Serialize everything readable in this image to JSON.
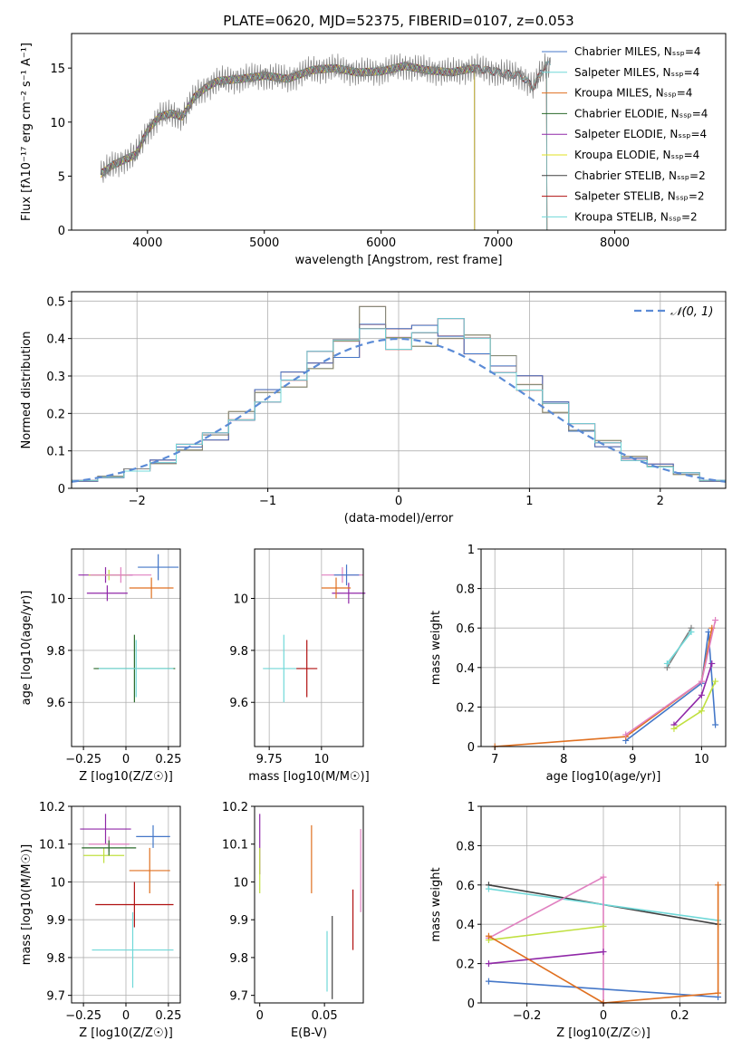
{
  "figure_title": "PLATE=0620, MJD=52375, FIBERID=0107, z=0.053",
  "colors": [
    "#4477c8",
    "#e07020",
    "#808080",
    "#9028a8",
    "#c0e040",
    "#e080c0",
    "#2a6a2a",
    "#b01010",
    "#70d8d8"
  ],
  "chart_data": [
    {
      "id": "spectrum",
      "type": "line",
      "xlabel": "wavelength [Angstrom, rest frame]",
      "ylabel": "Flux [fλ10⁻¹⁷ erg cm⁻² s⁻¹ A⁻¹]",
      "xlim": [
        3350,
        8950
      ],
      "ylim": [
        0,
        18.2
      ],
      "xticks": [
        4000,
        5000,
        6000,
        7000,
        8000
      ],
      "yticks": [
        0,
        5,
        10,
        15
      ],
      "grid": false,
      "legend": "upper-right",
      "data_x": [
        3600,
        3700,
        3800,
        3900,
        4000,
        4100,
        4200,
        4300,
        4400,
        4500,
        4600,
        4800,
        5000,
        5200,
        5400,
        5600,
        5800,
        6000,
        6200,
        6400,
        6600,
        6800,
        7000,
        7200,
        7300,
        7400,
        7450
      ],
      "data_y": [
        5.2,
        6.0,
        6.5,
        7.0,
        9.2,
        10.5,
        10.8,
        10.5,
        12.3,
        13.2,
        13.8,
        14.0,
        14.3,
        14.0,
        14.8,
        15.0,
        14.6,
        14.7,
        15.2,
        14.8,
        14.6,
        15.0,
        14.6,
        14.3,
        13.2,
        15.2,
        15.3
      ],
      "models": [
        {
          "name": "Chabrier MILES, N_SSP=4",
          "color": "#4477c8",
          "x_end": 8950
        },
        {
          "name": "Salpeter MILES, N_SSP=4",
          "color": "#70d8d8",
          "x_end": 8950
        },
        {
          "name": "Kroupa MILES, N_SSP=4",
          "color": "#e07020",
          "x_end": 7420
        },
        {
          "name": "Chabrier ELODIE, N_SSP=4",
          "color": "#2a6a2a",
          "x_end": 6800
        },
        {
          "name": "Salpeter ELODIE, N_SSP=4",
          "color": "#9028a8",
          "x_end": 6800
        },
        {
          "name": "Kroupa ELODIE, N_SSP=4",
          "color": "#e0e020",
          "x_end": 6800
        },
        {
          "name": "Chabrier STELIB, N_SSP=2",
          "color": "#404040",
          "x_end": 7420
        },
        {
          "name": "Salpeter STELIB, N_SSP=2",
          "color": "#b01010",
          "x_end": 7420
        },
        {
          "name": "Kroupa STELIB, N_SSP=2",
          "color": "#70d8d8",
          "x_end": 7420
        }
      ]
    },
    {
      "id": "residuals",
      "type": "line",
      "xlabel": "(data-model)/error",
      "ylabel": "Normed distribution",
      "xlim": [
        -2.5,
        2.5
      ],
      "ylim": [
        0,
        0.525
      ],
      "xticks": [
        -2,
        -1,
        0,
        1,
        2
      ],
      "yticks": [
        0.0,
        0.1,
        0.2,
        0.3,
        0.4,
        0.5
      ],
      "grid": true,
      "legend": "top-right",
      "reference": {
        "name": "N(0,1)",
        "color": "#5b8bd6"
      },
      "hist_x": [
        -2.4,
        -2.2,
        -2.0,
        -1.8,
        -1.6,
        -1.4,
        -1.2,
        -1.0,
        -0.8,
        -0.6,
        -0.4,
        -0.2,
        0.0,
        0.2,
        0.4,
        0.6,
        0.8,
        1.0,
        1.2,
        1.4,
        1.6,
        1.8,
        2.0,
        2.2,
        2.4
      ],
      "hist_y": [
        0.02,
        0.03,
        0.05,
        0.07,
        0.11,
        0.14,
        0.19,
        0.25,
        0.29,
        0.34,
        0.38,
        0.45,
        0.4,
        0.41,
        0.42,
        0.39,
        0.33,
        0.28,
        0.22,
        0.16,
        0.12,
        0.08,
        0.06,
        0.04,
        0.02
      ],
      "hist_colors": [
        "#e080c0",
        "#e07020",
        "#b01010",
        "#c0e040",
        "#9028a8",
        "#4477c8",
        "#808080",
        "#70d8d8"
      ]
    },
    {
      "id": "age_vs_Z",
      "type": "scatter",
      "xlabel": "Z [log10(Z/Z☉)]",
      "ylabel": "age  [log10(age/yr)]",
      "xlim": [
        -0.32,
        0.32
      ],
      "ylim": [
        9.43,
        10.19
      ],
      "xticks": [
        -0.25,
        0.0,
        0.25
      ],
      "yticks": [
        9.6,
        9.8,
        10.0
      ],
      "grid": true,
      "points": [
        {
          "x": 0.05,
          "y": 9.73,
          "xerr": 0.24,
          "yerr": 0.13,
          "color": "#2a6a2a"
        },
        {
          "x": 0.06,
          "y": 9.73,
          "xerr": 0.22,
          "yerr": 0.11,
          "color": "#70d8d8"
        },
        {
          "x": -0.12,
          "y": 10.09,
          "xerr": 0.16,
          "yerr": 0.03,
          "color": "#9028a8"
        },
        {
          "x": -0.1,
          "y": 10.09,
          "xerr": 0.12,
          "yerr": 0.02,
          "color": "#c0e040"
        },
        {
          "x": -0.03,
          "y": 10.09,
          "xerr": 0.18,
          "yerr": 0.03,
          "color": "#e080c0"
        },
        {
          "x": -0.11,
          "y": 10.02,
          "xerr": 0.12,
          "yerr": 0.03,
          "color": "#9028a8"
        },
        {
          "x": 0.15,
          "y": 10.04,
          "xerr": 0.13,
          "yerr": 0.04,
          "color": "#e07020"
        },
        {
          "x": 0.19,
          "y": 10.12,
          "xerr": 0.12,
          "yerr": 0.05,
          "color": "#4477c8"
        }
      ]
    },
    {
      "id": "age_vs_mass",
      "type": "scatter",
      "xlabel": "mass [log10(M/M☉)]",
      "ylabel": "",
      "xlim": [
        9.68,
        10.2
      ],
      "ylim": [
        9.43,
        10.19
      ],
      "xticks": [
        9.75,
        10.0
      ],
      "yticks": [
        9.6,
        9.8,
        10.0
      ],
      "grid": true,
      "points": [
        {
          "x": 9.82,
          "y": 9.73,
          "xerr": 0.1,
          "yerr": 0.13,
          "color": "#70d8d8"
        },
        {
          "x": 9.93,
          "y": 9.73,
          "xerr": 0.05,
          "yerr": 0.11,
          "color": "#b01010"
        },
        {
          "x": 10.1,
          "y": 10.09,
          "xerr": 0.1,
          "yerr": 0.03,
          "color": "#e080c0"
        },
        {
          "x": 10.13,
          "y": 10.02,
          "xerr": 0.08,
          "yerr": 0.04,
          "color": "#9028a8"
        },
        {
          "x": 10.07,
          "y": 10.04,
          "xerr": 0.07,
          "yerr": 0.04,
          "color": "#e07020"
        },
        {
          "x": 10.12,
          "y": 10.09,
          "xerr": 0.06,
          "yerr": 0.04,
          "color": "#4477c8"
        }
      ]
    },
    {
      "id": "weight_vs_age",
      "type": "line",
      "xlabel": "age  [log10(age/yr)]",
      "ylabel": "mass weight",
      "xlim": [
        6.8,
        10.35
      ],
      "ylim": [
        0,
        1.0
      ],
      "xticks": [
        7,
        8,
        9,
        10
      ],
      "yticks": [
        0.0,
        0.2,
        0.4,
        0.6,
        0.8,
        1.0
      ],
      "grid": true,
      "series": [
        {
          "color": "#4477c8",
          "x": [
            8.9,
            10.0,
            10.1,
            10.2
          ],
          "y": [
            0.03,
            0.32,
            0.58,
            0.11
          ]
        },
        {
          "color": "#e07020",
          "x": [
            7.0,
            8.9,
            10.0,
            10.15
          ],
          "y": [
            0.0,
            0.05,
            0.33,
            0.6
          ]
        },
        {
          "color": "#e080c0",
          "x": [
            8.9,
            10.0,
            10.2
          ],
          "y": [
            0.06,
            0.33,
            0.64
          ]
        },
        {
          "color": "#9028a8",
          "x": [
            9.6,
            10.0,
            10.15
          ],
          "y": [
            0.11,
            0.26,
            0.42
          ]
        },
        {
          "color": "#c0e040",
          "x": [
            9.6,
            10.0,
            10.2
          ],
          "y": [
            0.09,
            0.18,
            0.33
          ]
        },
        {
          "color": "#808080",
          "x": [
            9.5,
            9.85
          ],
          "y": [
            0.4,
            0.6
          ]
        },
        {
          "color": "#70d8d8",
          "x": [
            9.5,
            9.85
          ],
          "y": [
            0.42,
            0.58
          ]
        }
      ]
    },
    {
      "id": "mass_vs_Z",
      "type": "scatter",
      "xlabel": "Z [log10(Z/Z☉)]",
      "ylabel": "mass [log10(M/M☉)]",
      "xlim": [
        -0.32,
        0.32
      ],
      "ylim": [
        9.68,
        10.2
      ],
      "xticks": [
        -0.25,
        0.0,
        0.25
      ],
      "yticks": [
        9.7,
        9.8,
        9.9,
        10.0,
        10.1,
        10.2
      ],
      "grid": true,
      "points": [
        {
          "x": -0.12,
          "y": 10.14,
          "xerr": 0.15,
          "yerr": 0.04,
          "color": "#9028a8"
        },
        {
          "x": -0.1,
          "y": 10.1,
          "xerr": 0.12,
          "yerr": 0.02,
          "color": "#e080c0"
        },
        {
          "x": -0.13,
          "y": 10.07,
          "xerr": 0.12,
          "yerr": 0.02,
          "color": "#c0e040"
        },
        {
          "x": 0.16,
          "y": 10.12,
          "xerr": 0.1,
          "yerr": 0.03,
          "color": "#4477c8"
        },
        {
          "x": 0.14,
          "y": 10.03,
          "xerr": 0.12,
          "yerr": 0.06,
          "color": "#e07020"
        },
        {
          "x": -0.1,
          "y": 10.09,
          "xerr": 0.16,
          "yerr": 0.02,
          "color": "#2a6a2a"
        },
        {
          "x": 0.05,
          "y": 9.94,
          "xerr": 0.23,
          "yerr": 0.06,
          "color": "#b01010"
        },
        {
          "x": 0.04,
          "y": 9.82,
          "xerr": 0.24,
          "yerr": 0.1,
          "color": "#70d8d8"
        }
      ]
    },
    {
      "id": "mass_vs_EBV",
      "type": "scatter",
      "xlabel": "E(B-V)",
      "ylabel": "",
      "xlim": [
        -0.004,
        0.08
      ],
      "ylim": [
        9.68,
        10.2
      ],
      "xticks": [
        0.0,
        0.05
      ],
      "yticks": [
        9.7,
        9.8,
        9.9,
        10.0,
        10.1,
        10.2
      ],
      "grid": false,
      "points": [
        {
          "x": 0.0,
          "y": 10.1,
          "xerr": 0,
          "yerr": 0.08,
          "color": "#9028a8"
        },
        {
          "x": 0.0,
          "y": 10.03,
          "xerr": 0,
          "yerr": 0.06,
          "color": "#c0e040"
        },
        {
          "x": 0.04,
          "y": 10.06,
          "xerr": 0,
          "yerr": 0.09,
          "color": "#e07020"
        },
        {
          "x": 0.052,
          "y": 9.79,
          "xerr": 0,
          "yerr": 0.08,
          "color": "#70d8d8"
        },
        {
          "x": 0.056,
          "y": 9.8,
          "xerr": 0,
          "yerr": 0.11,
          "color": "#404040"
        },
        {
          "x": 0.072,
          "y": 9.9,
          "xerr": 0,
          "yerr": 0.08,
          "color": "#b01010"
        },
        {
          "x": 0.078,
          "y": 10.03,
          "xerr": 0,
          "yerr": 0.11,
          "color": "#e080c0"
        }
      ]
    },
    {
      "id": "weight_vs_Z",
      "type": "line",
      "xlabel": "Z [log10(Z/Z☉)]",
      "ylabel": "mass weight",
      "xlim": [
        -0.32,
        0.32
      ],
      "ylim": [
        0,
        1.0
      ],
      "xticks": [
        -0.2,
        0.0,
        0.2
      ],
      "yticks": [
        0.0,
        0.2,
        0.4,
        0.6,
        0.8,
        1.0
      ],
      "grid": true,
      "series": [
        {
          "color": "#404040",
          "x": [
            -0.3,
            0.3
          ],
          "y": [
            0.6,
            0.4
          ]
        },
        {
          "color": "#70d8d8",
          "x": [
            -0.3,
            0.3
          ],
          "y": [
            0.58,
            0.42
          ]
        },
        {
          "color": "#e080c0",
          "x": [
            -0.3,
            0.0,
            0.0
          ],
          "y": [
            0.33,
            0.64,
            0.0
          ]
        },
        {
          "color": "#c0e040",
          "x": [
            -0.3,
            0.0
          ],
          "y": [
            0.32,
            0.39
          ]
        },
        {
          "color": "#9028a8",
          "x": [
            -0.3,
            0.0
          ],
          "y": [
            0.2,
            0.26
          ]
        },
        {
          "color": "#4477c8",
          "x": [
            -0.3,
            0.3
          ],
          "y": [
            0.11,
            0.03
          ]
        },
        {
          "color": "#e07020",
          "x": [
            -0.3,
            0.0,
            0.3,
            0.3
          ],
          "y": [
            0.34,
            0.0,
            0.05,
            0.6
          ]
        }
      ]
    }
  ]
}
